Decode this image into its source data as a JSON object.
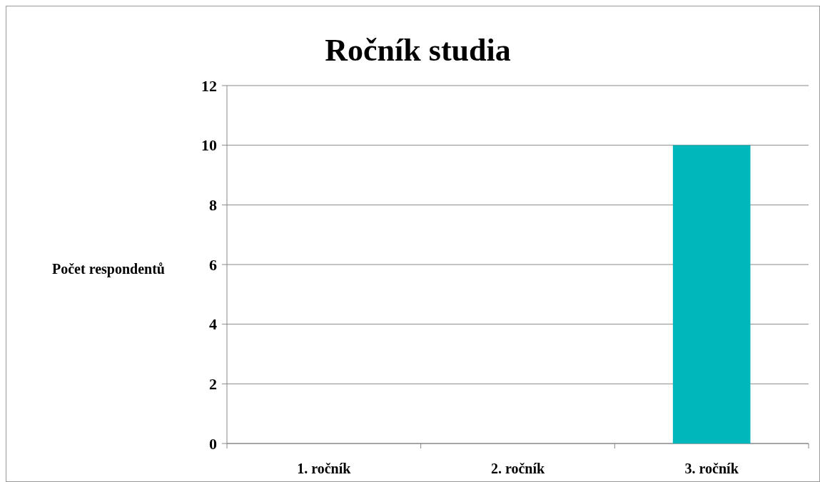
{
  "chart_data": {
    "type": "bar",
    "title": "Ročník studia",
    "ylabel": "Počet respondentů",
    "categories": [
      "1. ročník",
      "2. ročník",
      "3. ročník"
    ],
    "values": [
      0,
      0,
      10
    ],
    "color": "#00b8bc",
    "ylim": [
      0,
      12
    ],
    "yticks": [
      0,
      2,
      4,
      6,
      8,
      10,
      12
    ],
    "grid": "y"
  }
}
